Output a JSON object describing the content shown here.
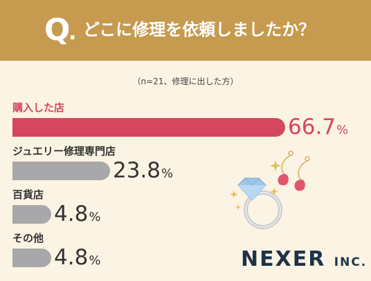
{
  "header": {
    "q_letter": "Q",
    "q_dot": ".",
    "question": "どこに修理を依頼しましたか？"
  },
  "note": "（n=21、修理に出した方）",
  "colors": {
    "header": "#c69a4f",
    "background": "#fbf3e3",
    "highlight_bar": "#d4475e",
    "highlight_text": "#d4475e",
    "gray_bar": "#a8a8ab",
    "text": "#333333",
    "logo": "#1e3248"
  },
  "chart_data": {
    "type": "bar",
    "orientation": "horizontal",
    "categories": [
      "購入した店",
      "ジュエリー修理専門店",
      "百貨店",
      "その他"
    ],
    "values": [
      66.7,
      23.8,
      4.8,
      4.8
    ],
    "value_labels": [
      "66.7",
      "23.8",
      "4.8",
      "4.8"
    ],
    "unit": "%",
    "highlight_index": 0,
    "xlim": [
      0,
      100
    ],
    "grid": false,
    "legend": "none"
  },
  "logo": {
    "main": "NEXER",
    "suffix": "INC."
  },
  "illustration": {
    "icons": [
      "ring-icon",
      "earrings-icon",
      "sparkle-icon"
    ]
  }
}
